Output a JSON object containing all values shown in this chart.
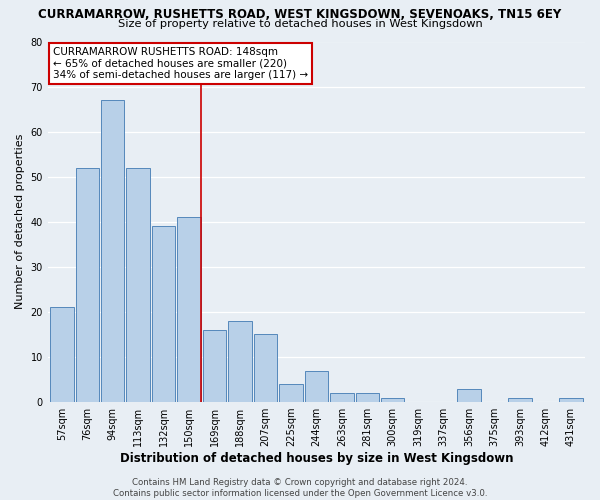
{
  "title": "CURRAMARROW, RUSHETTS ROAD, WEST KINGSDOWN, SEVENOAKS, TN15 6EY",
  "subtitle": "Size of property relative to detached houses in West Kingsdown",
  "xlabel": "Distribution of detached houses by size in West Kingsdown",
  "ylabel": "Number of detached properties",
  "footer_line1": "Contains HM Land Registry data © Crown copyright and database right 2024.",
  "footer_line2": "Contains public sector information licensed under the Open Government Licence v3.0.",
  "bar_labels": [
    "57sqm",
    "76sqm",
    "94sqm",
    "113sqm",
    "132sqm",
    "150sqm",
    "169sqm",
    "188sqm",
    "207sqm",
    "225sqm",
    "244sqm",
    "263sqm",
    "281sqm",
    "300sqm",
    "319sqm",
    "337sqm",
    "356sqm",
    "375sqm",
    "393sqm",
    "412sqm",
    "431sqm"
  ],
  "bar_values": [
    21,
    52,
    67,
    52,
    39,
    41,
    16,
    18,
    15,
    4,
    7,
    2,
    2,
    1,
    0,
    0,
    3,
    0,
    1,
    0,
    1
  ],
  "bar_color": "#b8d0e8",
  "bar_edge_color": "#5588bb",
  "highlight_index": 5,
  "highlight_color": "#cc0000",
  "annotation_title": "CURRAMARROW RUSHETTS ROAD: 148sqm",
  "annotation_line1": "← 65% of detached houses are smaller (220)",
  "annotation_line2": "34% of semi-detached houses are larger (117) →",
  "annotation_box_color": "#ffffff",
  "annotation_box_edge": "#cc0000",
  "ylim": [
    0,
    80
  ],
  "yticks": [
    0,
    10,
    20,
    30,
    40,
    50,
    60,
    70,
    80
  ],
  "bg_color": "#e8eef4",
  "grid_color": "#ffffff",
  "title_fontsize": 8.5,
  "subtitle_fontsize": 8.2,
  "xlabel_fontsize": 8.5,
  "ylabel_fontsize": 8.0,
  "tick_fontsize": 7.0,
  "annotation_fontsize": 7.5,
  "footer_fontsize": 6.2
}
